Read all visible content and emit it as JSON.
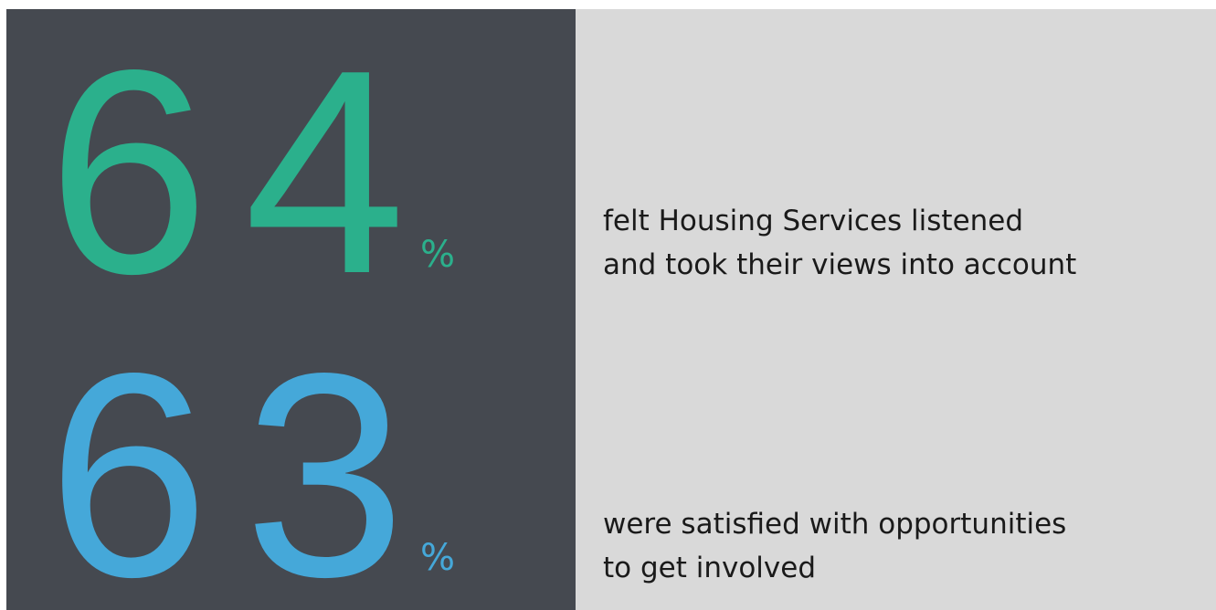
{
  "stats": [
    {
      "value": 64,
      "unit": "%",
      "color": "#2bb08c",
      "lines": [
        "felt Housing Services listened",
        "and took their views into account"
      ]
    },
    {
      "value": 63,
      "unit": "%",
      "color": "#45a8d9",
      "lines": [
        "were satisfied with opportunities",
        "to get involved"
      ]
    }
  ]
}
